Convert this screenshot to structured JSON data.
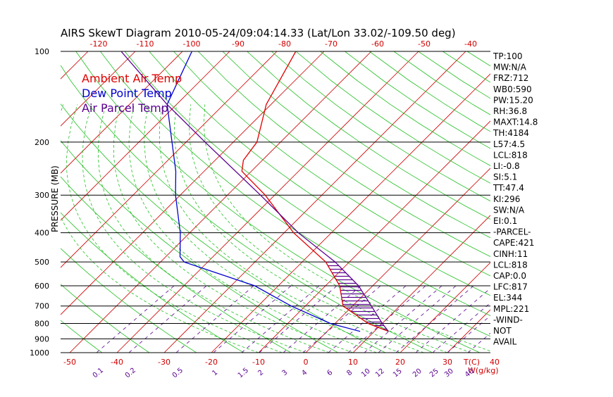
{
  "chart_data": {
    "type": "line",
    "title": "AIRS SkewT Diagram 2010-05-24/09:04:14.33 (Lat/Lon 33.02/-109.50 deg)",
    "ylabel": "PRESSURE (MB)",
    "xlabel": "T(C)",
    "mixing_ratio_unit": "W(g/kg)",
    "pressure_ticks": [
      100,
      200,
      300,
      400,
      500,
      600,
      700,
      800,
      900,
      1000
    ],
    "temp_ticks_top": [
      -120,
      -110,
      -100,
      -90,
      -80,
      -70,
      -60,
      -50,
      -40
    ],
    "temp_ticks_bottom": [
      -50,
      -40,
      -30,
      -20,
      -10,
      0,
      10,
      20,
      30,
      40
    ],
    "mixing_ratio_ticks": [
      "0.1",
      "0.2",
      "0.5",
      "1",
      "1.5",
      "2",
      "3",
      "4",
      "6",
      "8",
      "10",
      "12",
      "15",
      "20",
      "25",
      "30",
      "40"
    ],
    "ylim": [
      1000,
      100
    ],
    "xlim_bottom": [
      -50,
      45
    ],
    "grid": true,
    "legend_position": "top-left",
    "series": [
      {
        "name": "Ambient Air Temp",
        "color": "#e00000",
        "points": [
          {
            "p": 100,
            "t": -66
          },
          {
            "p": 150,
            "t": -61
          },
          {
            "p": 200,
            "t": -55
          },
          {
            "p": 230,
            "t": -54
          },
          {
            "p": 250,
            "t": -52
          },
          {
            "p": 300,
            "t": -42
          },
          {
            "p": 400,
            "t": -28
          },
          {
            "p": 500,
            "t": -15
          },
          {
            "p": 600,
            "t": -7
          },
          {
            "p": 700,
            "t": -2
          },
          {
            "p": 800,
            "t": 7
          },
          {
            "p": 850,
            "t": 13
          }
        ]
      },
      {
        "name": "Dew Point Temp",
        "color": "#0000d0",
        "points": [
          {
            "p": 100,
            "t": -88
          },
          {
            "p": 150,
            "t": -82
          },
          {
            "p": 200,
            "t": -73
          },
          {
            "p": 250,
            "t": -66
          },
          {
            "p": 300,
            "t": -61
          },
          {
            "p": 400,
            "t": -52
          },
          {
            "p": 480,
            "t": -47
          },
          {
            "p": 500,
            "t": -45
          },
          {
            "p": 600,
            "t": -25
          },
          {
            "p": 700,
            "t": -13
          },
          {
            "p": 800,
            "t": -1
          },
          {
            "p": 850,
            "t": 7
          }
        ]
      },
      {
        "name": "Air Parcel Temp",
        "color": "#5a0090",
        "points": [
          {
            "p": 100,
            "t": -103
          },
          {
            "p": 150,
            "t": -82
          },
          {
            "p": 200,
            "t": -66
          },
          {
            "p": 300,
            "t": -43
          },
          {
            "p": 400,
            "t": -27
          },
          {
            "p": 500,
            "t": -13
          },
          {
            "p": 600,
            "t": -3
          },
          {
            "p": 700,
            "t": 4
          },
          {
            "p": 800,
            "t": 10
          },
          {
            "p": 850,
            "t": 13
          }
        ]
      }
    ],
    "indices": [
      "TP:100",
      "MW:N/A",
      "FRZ:712",
      "WB0:590",
      "PW:15.20",
      "RH:36.8",
      "MAXT:14.8",
      "TH:4184",
      "L57:4.5",
      "LCL:818",
      "LI:-0.8",
      "SI:5.1",
      "TT:47.4",
      "KI:296",
      "SW:N/A",
      "EI:0.1",
      "-PARCEL-",
      "CAPE:421",
      "CINH:11",
      "LCL:818",
      "CAP:0.0",
      "LFC:817",
      "EL:344",
      "MPL:221",
      "-WIND-",
      "NOT",
      "AVAIL"
    ]
  }
}
